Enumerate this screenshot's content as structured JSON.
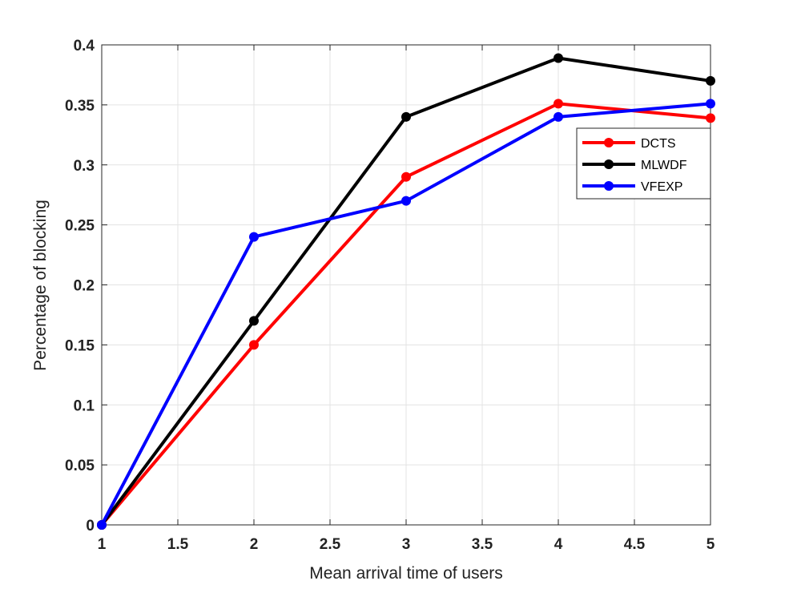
{
  "chart_data": {
    "type": "line",
    "title": "",
    "xlabel": "Mean arrival time of users",
    "ylabel": "Percentage of blocking",
    "xlim": [
      1,
      5
    ],
    "ylim": [
      0,
      0.4
    ],
    "x_ticks": [
      "1",
      "1.5",
      "2",
      "2.5",
      "3",
      "3.5",
      "4",
      "4.5",
      "5"
    ],
    "y_ticks": [
      "0",
      "0.05",
      "0.1",
      "0.15",
      "0.2",
      "0.25",
      "0.3",
      "0.35",
      "0.4"
    ],
    "grid": true,
    "legend_position": "upper-right",
    "x": [
      1,
      2,
      3,
      4,
      5
    ],
    "series": [
      {
        "name": "DCTS",
        "color": "#ff0000",
        "marker": "circle",
        "values": [
          0,
          0.15,
          0.29,
          0.351,
          0.339
        ]
      },
      {
        "name": "MLWDF",
        "color": "#000000",
        "marker": "circle",
        "values": [
          0,
          0.17,
          0.34,
          0.389,
          0.37
        ]
      },
      {
        "name": "VFEXP",
        "color": "#0000ff",
        "marker": "circle",
        "values": [
          0,
          0.24,
          0.27,
          0.34,
          0.351
        ]
      }
    ]
  }
}
